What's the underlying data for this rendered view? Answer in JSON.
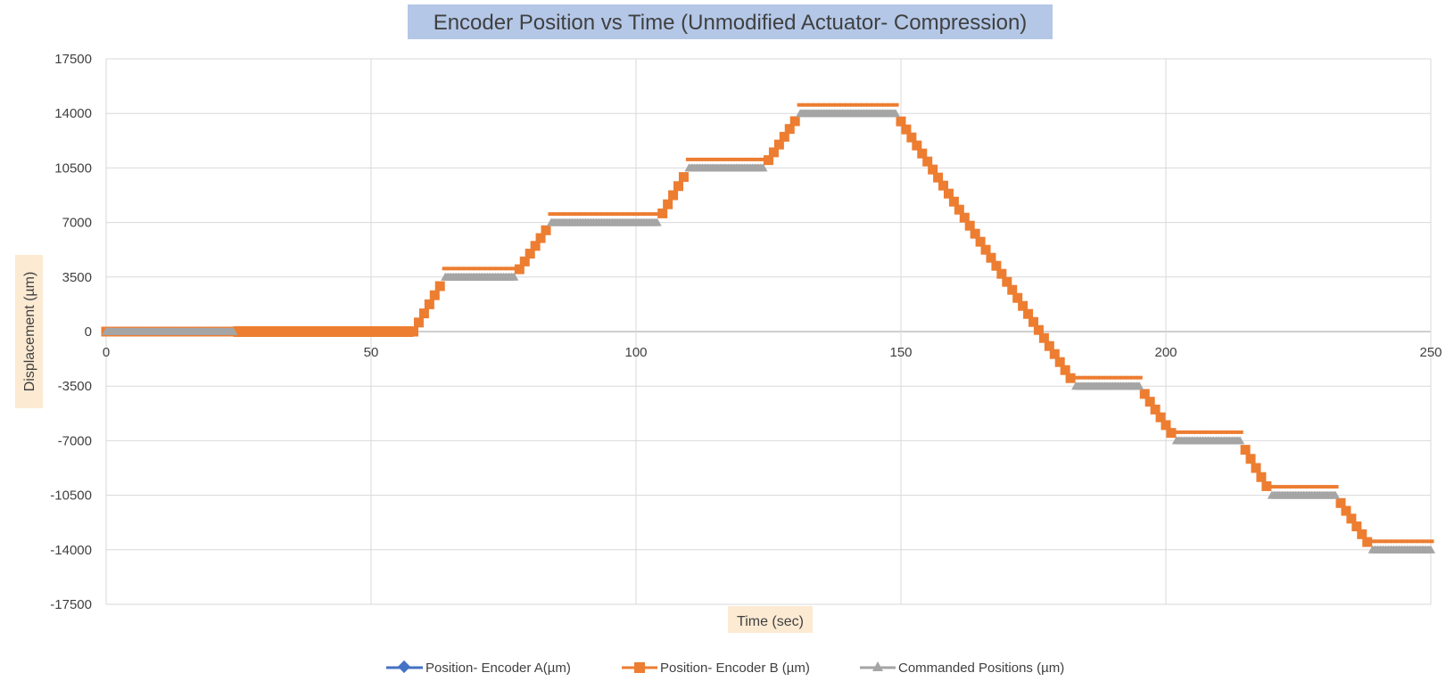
{
  "chart_data": {
    "type": "scatter",
    "title": "Encoder Position vs Time (Unmodified Actuator- Compression)",
    "xlabel": "Time (sec)",
    "ylabel": "Displacement  (µm)",
    "xlim": [
      0,
      250
    ],
    "ylim": [
      -17500,
      17500
    ],
    "x_ticks": [
      0,
      50,
      100,
      150,
      200,
      250
    ],
    "y_ticks": [
      17500,
      14000,
      10500,
      7000,
      3500,
      0,
      -3500,
      -7000,
      -10500,
      -14000,
      -17500
    ],
    "grid": true,
    "legend_position": "bottom",
    "series": [
      {
        "name": "Position- Encoder A(µm)",
        "color": "#4472C4",
        "marker": "diamond",
        "points": []
      },
      {
        "name": "Position- Encoder B (µm)",
        "color": "#ED7D31",
        "marker": "square",
        "points": [
          [
            0,
            0
          ],
          [
            24,
            0
          ],
          [
            24,
            0
          ],
          [
            58,
            0
          ],
          [
            64,
            3500
          ],
          [
            77,
            3500
          ],
          [
            84,
            7000
          ],
          [
            104,
            7000
          ],
          [
            110,
            10500
          ],
          [
            124,
            10500
          ],
          [
            131,
            14000
          ],
          [
            149,
            14000
          ],
          [
            183,
            -3500
          ],
          [
            195,
            -3500
          ],
          [
            202,
            -7000
          ],
          [
            214,
            -7000
          ],
          [
            220,
            -10500
          ],
          [
            232,
            -10500
          ],
          [
            239,
            -14000
          ],
          [
            250,
            -14000
          ]
        ]
      },
      {
        "name": "Commanded Positions (µm)",
        "color": "#A5A5A5",
        "marker": "triangle",
        "points": [
          [
            0,
            0
          ],
          [
            24,
            0
          ],
          [
            64,
            3500
          ],
          [
            77,
            3500
          ],
          [
            84,
            7000
          ],
          [
            104,
            7000
          ],
          [
            110,
            10500
          ],
          [
            124,
            10500
          ],
          [
            131,
            14000
          ],
          [
            149,
            14000
          ],
          [
            183,
            -3500
          ],
          [
            195,
            -3500
          ],
          [
            202,
            -7000
          ],
          [
            214,
            -7000
          ],
          [
            220,
            -10500
          ],
          [
            232,
            -10500
          ],
          [
            239,
            -14000
          ],
          [
            250,
            -14000
          ]
        ]
      }
    ]
  }
}
